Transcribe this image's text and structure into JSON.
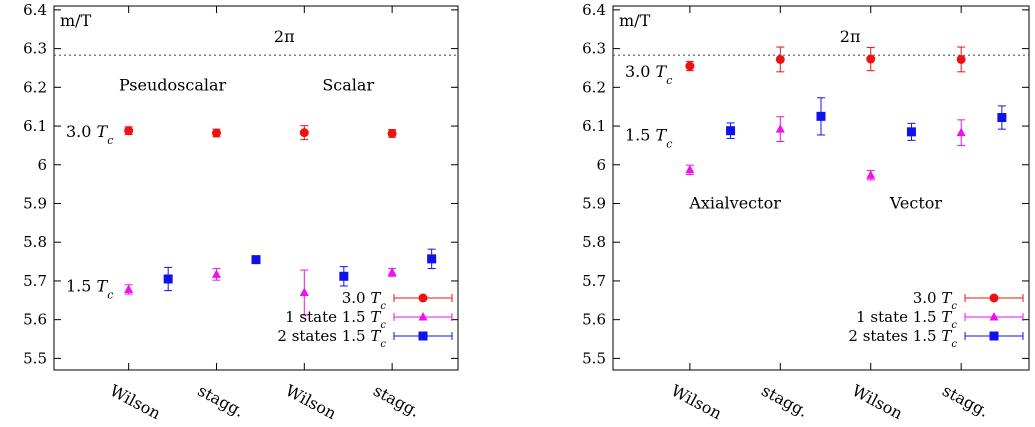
{
  "chart_data": [
    {
      "type": "scatter",
      "ylabel": "m/T",
      "ylim": [
        5.47,
        6.41
      ],
      "yticks": [
        "5.5",
        "5.6",
        "5.7",
        "5.8",
        "5.9",
        "6",
        "6.1",
        "6.2",
        "6.3",
        "6.4"
      ],
      "categories": [
        "Wilson",
        "stagg.",
        "Wilson",
        "stagg."
      ],
      "reference_line": {
        "label": "2π",
        "value": 6.283
      },
      "annotations": [
        {
          "text": "Pseudoscalar",
          "x": 1.5,
          "y": 6.205
        },
        {
          "text": "Scalar",
          "x": 3.5,
          "y": 6.205
        },
        {
          "text": "3.0 Tc",
          "x": 0.65,
          "y": 6.085
        },
        {
          "text": "1.5 Tc",
          "x": 0.65,
          "y": 5.685
        }
      ],
      "legend_position": "bottom-right",
      "series": [
        {
          "name": "3.0 Tc",
          "color": "#ee1111",
          "marker": "circle",
          "points": [
            {
              "x": 1,
              "y": 6.088,
              "err": 0.01
            },
            {
              "x": 2,
              "y": 6.082,
              "err": 0.01
            },
            {
              "x": 3,
              "y": 6.083,
              "err": 0.018
            },
            {
              "x": 4,
              "y": 6.081,
              "err": 0.01
            }
          ]
        },
        {
          "name": "1 state 1.5 Tc",
          "color": "#ee11ee",
          "marker": "triangle",
          "points": [
            {
              "x": 1,
              "y": 5.678,
              "err": 0.012
            },
            {
              "x": 2,
              "y": 5.717,
              "err": 0.015
            },
            {
              "x": 3,
              "y": 5.67,
              "err": 0.058
            },
            {
              "x": 4,
              "y": 5.722,
              "err": 0.01
            }
          ]
        },
        {
          "name": "2 states 1.5 Tc",
          "color": "#1111ee",
          "marker": "square",
          "points": [
            {
              "x": 1.45,
              "y": 5.705,
              "err": 0.03
            },
            {
              "x": 2.45,
              "y": 5.755,
              "err": 0.0
            },
            {
              "x": 3.45,
              "y": 5.712,
              "err": 0.025
            },
            {
              "x": 4.45,
              "y": 5.757,
              "err": 0.025
            }
          ]
        }
      ]
    },
    {
      "type": "scatter",
      "ylabel": "m/T",
      "ylim": [
        5.47,
        6.41
      ],
      "yticks": [
        "5.5",
        "5.6",
        "5.7",
        "5.8",
        "5.9",
        "6",
        "6.1",
        "6.2",
        "6.3",
        "6.4"
      ],
      "categories": [
        "Wilson",
        "stagg.",
        "Wilson",
        "stagg."
      ],
      "reference_line": {
        "label": "2π",
        "value": 6.283
      },
      "annotations": [
        {
          "text": "Axialvector",
          "x": 1.5,
          "y": 5.9
        },
        {
          "text": "Vector",
          "x": 3.5,
          "y": 5.9
        },
        {
          "text": "3.0 Tc",
          "x": 0.65,
          "y": 6.24
        },
        {
          "text": "1.5 Tc",
          "x": 0.65,
          "y": 6.075
        }
      ],
      "legend_position": "bottom-right",
      "series": [
        {
          "name": "3.0 Tc",
          "color": "#ee1111",
          "marker": "circle",
          "points": [
            {
              "x": 1,
              "y": 6.255,
              "err": 0.012
            },
            {
              "x": 2,
              "y": 6.272,
              "err": 0.032
            },
            {
              "x": 3,
              "y": 6.273,
              "err": 0.03
            },
            {
              "x": 4,
              "y": 6.272,
              "err": 0.032
            }
          ]
        },
        {
          "name": "1 state 1.5 Tc",
          "color": "#ee11ee",
          "marker": "triangle",
          "points": [
            {
              "x": 1,
              "y": 5.987,
              "err": 0.012
            },
            {
              "x": 2,
              "y": 6.092,
              "err": 0.032
            },
            {
              "x": 3,
              "y": 5.973,
              "err": 0.012
            },
            {
              "x": 4,
              "y": 6.083,
              "err": 0.033
            }
          ]
        },
        {
          "name": "2 states 1.5 Tc",
          "color": "#1111ee",
          "marker": "square",
          "points": [
            {
              "x": 1.45,
              "y": 6.088,
              "err": 0.02
            },
            {
              "x": 2.45,
              "y": 6.125,
              "err": 0.048
            },
            {
              "x": 3.45,
              "y": 6.085,
              "err": 0.022
            },
            {
              "x": 4.45,
              "y": 6.122,
              "err": 0.03
            }
          ]
        }
      ]
    }
  ]
}
